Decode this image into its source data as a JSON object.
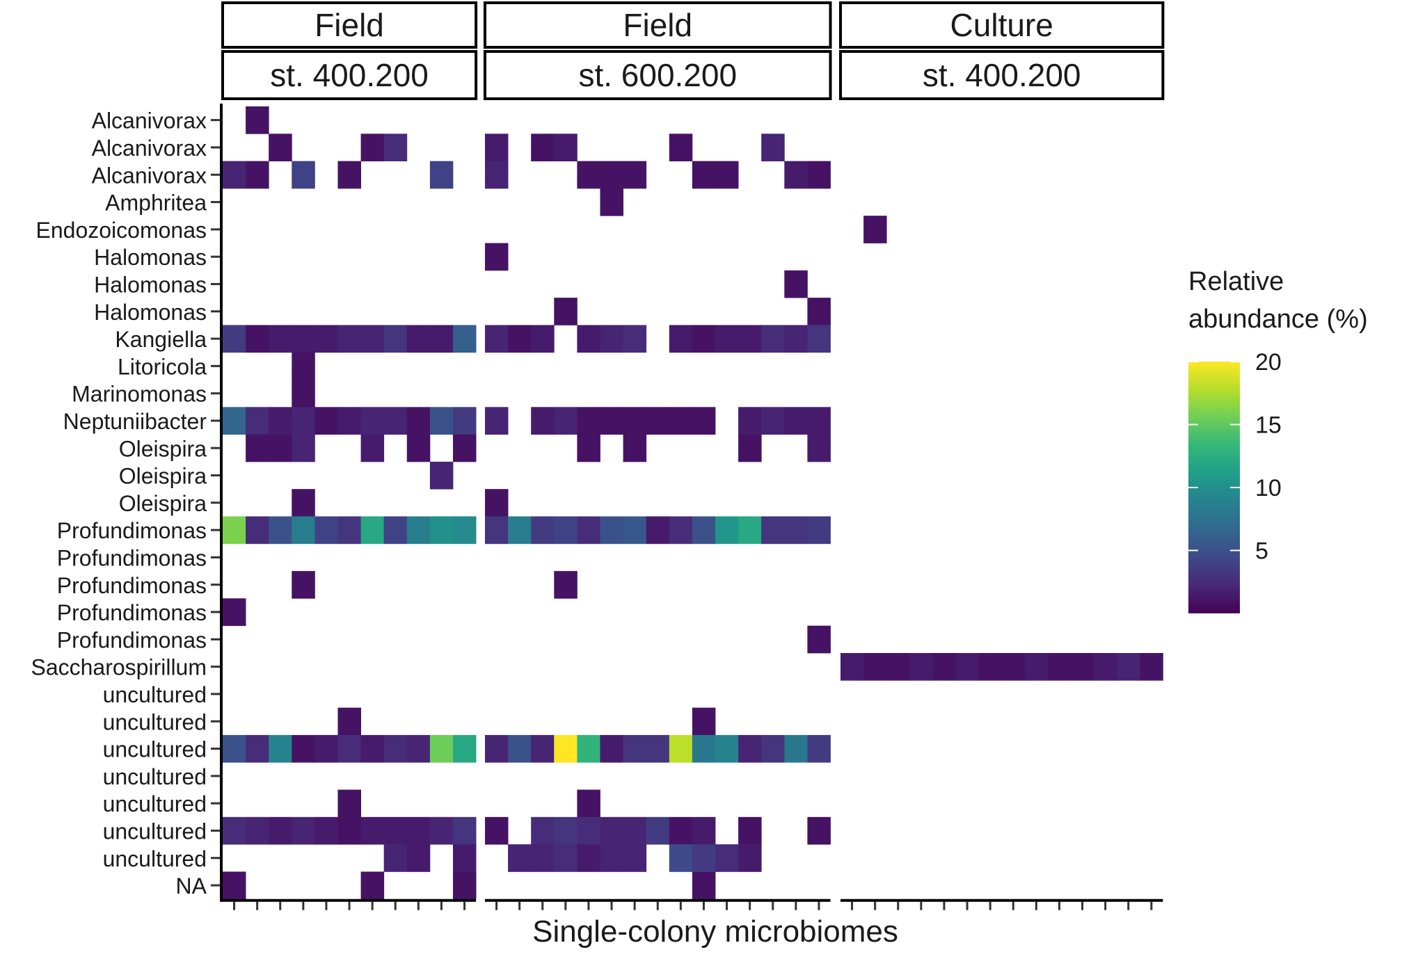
{
  "chart_data": {
    "type": "heatmap",
    "xlabel": "Single-colony microbiomes",
    "ylabel": "",
    "legend": {
      "title_line1": "Relative",
      "title_line2": "abundance (%)",
      "ticks": [
        5,
        10,
        15,
        20
      ],
      "range": [
        0,
        20
      ],
      "placement": "right"
    },
    "colorscale": [
      "#440154",
      "#482878",
      "#3e4989",
      "#31688e",
      "#26828e",
      "#1f9e89",
      "#35b779",
      "#6ece58",
      "#b5de2b",
      "#fde725"
    ],
    "rows": [
      "Alcanivorax",
      "Alcanivorax",
      "Alcanivorax",
      "Amphritea",
      "Endozoicomonas",
      "Halomonas",
      "Halomonas",
      "Halomonas",
      "Kangiella",
      "Litoricola",
      "Marinomonas",
      "Neptuniibacter",
      "Oleispira",
      "Oleispira",
      "Oleispira",
      "Profundimonas",
      "Profundimonas",
      "Profundimonas",
      "Profundimonas",
      "Profundimonas",
      "Saccharospirillum",
      "uncultured",
      "uncultured",
      "uncultured",
      "uncultured",
      "uncultured",
      "uncultured",
      "uncultured",
      "NA"
    ],
    "panels": [
      {
        "strip_top": "Field",
        "strip_bottom": "st. 400.200",
        "ncols": 11,
        "cells": [
          [
            0,
            1,
            1
          ],
          [
            1,
            2,
            1
          ],
          [
            1,
            6,
            1
          ],
          [
            1,
            7,
            2.5
          ],
          [
            2,
            0,
            2
          ],
          [
            2,
            1,
            1
          ],
          [
            2,
            3,
            4
          ],
          [
            2,
            5,
            1
          ],
          [
            2,
            9,
            4
          ],
          [
            9,
            3,
            1
          ],
          [
            10,
            3,
            1
          ],
          [
            14,
            3,
            1
          ],
          [
            17,
            3,
            1
          ],
          [
            18,
            0,
            1
          ],
          [
            22,
            5,
            1
          ],
          [
            25,
            5,
            1
          ],
          [
            8,
            0,
            3.5
          ],
          [
            8,
            1,
            1
          ],
          [
            8,
            2,
            1.5
          ],
          [
            8,
            3,
            1.5
          ],
          [
            8,
            4,
            1.5
          ],
          [
            8,
            5,
            2
          ],
          [
            8,
            6,
            2
          ],
          [
            8,
            7,
            3
          ],
          [
            8,
            8,
            1.5
          ],
          [
            8,
            9,
            1.5
          ],
          [
            8,
            10,
            6
          ],
          [
            11,
            0,
            6.5
          ],
          [
            11,
            1,
            2.5
          ],
          [
            11,
            2,
            1.5
          ],
          [
            11,
            3,
            2
          ],
          [
            11,
            4,
            1
          ],
          [
            11,
            5,
            1.5
          ],
          [
            11,
            6,
            2
          ],
          [
            11,
            7,
            2
          ],
          [
            11,
            8,
            1
          ],
          [
            11,
            9,
            5
          ],
          [
            11,
            10,
            3.5
          ],
          [
            12,
            1,
            1
          ],
          [
            12,
            2,
            1
          ],
          [
            12,
            3,
            2
          ],
          [
            12,
            6,
            1.5
          ],
          [
            12,
            8,
            1
          ],
          [
            12,
            10,
            1
          ],
          [
            13,
            9,
            2
          ],
          [
            15,
            0,
            16
          ],
          [
            15,
            1,
            2.5
          ],
          [
            15,
            2,
            5
          ],
          [
            15,
            3,
            8.5
          ],
          [
            15,
            4,
            4
          ],
          [
            15,
            5,
            3
          ],
          [
            15,
            6,
            12
          ],
          [
            15,
            7,
            4
          ],
          [
            15,
            8,
            8.5
          ],
          [
            15,
            9,
            10
          ],
          [
            15,
            10,
            9.5
          ],
          [
            23,
            0,
            5
          ],
          [
            23,
            1,
            2.5
          ],
          [
            23,
            2,
            9
          ],
          [
            23,
            3,
            1
          ],
          [
            23,
            4,
            1.5
          ],
          [
            23,
            5,
            2.5
          ],
          [
            23,
            6,
            1.5
          ],
          [
            23,
            7,
            2.5
          ],
          [
            23,
            8,
            2
          ],
          [
            23,
            9,
            15.5
          ],
          [
            23,
            10,
            12
          ],
          [
            26,
            0,
            2.5
          ],
          [
            26,
            1,
            2
          ],
          [
            26,
            2,
            1.5
          ],
          [
            26,
            3,
            2
          ],
          [
            26,
            4,
            1.5
          ],
          [
            26,
            5,
            1
          ],
          [
            26,
            6,
            1.5
          ],
          [
            26,
            7,
            1.5
          ],
          [
            26,
            8,
            1.5
          ],
          [
            26,
            9,
            2
          ],
          [
            26,
            10,
            3
          ],
          [
            27,
            7,
            2
          ],
          [
            27,
            8,
            1.5
          ],
          [
            27,
            10,
            1.5
          ],
          [
            28,
            0,
            1
          ],
          [
            28,
            6,
            1
          ],
          [
            28,
            10,
            1
          ]
        ]
      },
      {
        "strip_top": "Field",
        "strip_bottom": "st. 600.200",
        "ncols": 15,
        "cells": [
          [
            1,
            0,
            1.5
          ],
          [
            1,
            2,
            1
          ],
          [
            1,
            3,
            1.5
          ],
          [
            1,
            8,
            1
          ],
          [
            1,
            12,
            2
          ],
          [
            2,
            0,
            2
          ],
          [
            2,
            4,
            1
          ],
          [
            2,
            5,
            1
          ],
          [
            2,
            6,
            1
          ],
          [
            2,
            9,
            1
          ],
          [
            2,
            10,
            1
          ],
          [
            2,
            13,
            1.5
          ],
          [
            2,
            14,
            1
          ],
          [
            3,
            5,
            1
          ],
          [
            5,
            0,
            1
          ],
          [
            6,
            13,
            1
          ],
          [
            7,
            3,
            1
          ],
          [
            7,
            14,
            1
          ],
          [
            14,
            0,
            1
          ],
          [
            19,
            14,
            1
          ],
          [
            17,
            3,
            1
          ],
          [
            22,
            9,
            1
          ],
          [
            25,
            4,
            1
          ],
          [
            28,
            9,
            1
          ],
          [
            8,
            0,
            2
          ],
          [
            8,
            1,
            1
          ],
          [
            8,
            2,
            1.5
          ],
          [
            8,
            4,
            1.5
          ],
          [
            8,
            5,
            2
          ],
          [
            8,
            6,
            2.5
          ],
          [
            8,
            8,
            1.5
          ],
          [
            8,
            9,
            1
          ],
          [
            8,
            10,
            1.5
          ],
          [
            8,
            11,
            1.5
          ],
          [
            8,
            12,
            2.5
          ],
          [
            8,
            13,
            2
          ],
          [
            8,
            14,
            3
          ],
          [
            11,
            0,
            2
          ],
          [
            11,
            2,
            1.5
          ],
          [
            11,
            3,
            2
          ],
          [
            11,
            4,
            1
          ],
          [
            11,
            5,
            1
          ],
          [
            11,
            6,
            1
          ],
          [
            11,
            7,
            1
          ],
          [
            11,
            8,
            1
          ],
          [
            11,
            9,
            1
          ],
          [
            11,
            11,
            1.5
          ],
          [
            11,
            12,
            2
          ],
          [
            11,
            13,
            1.5
          ],
          [
            11,
            14,
            1.5
          ],
          [
            12,
            4,
            1
          ],
          [
            12,
            6,
            1
          ],
          [
            12,
            11,
            1
          ],
          [
            12,
            14,
            1.5
          ],
          [
            15,
            0,
            3
          ],
          [
            15,
            1,
            8.5
          ],
          [
            15,
            2,
            3.5
          ],
          [
            15,
            3,
            4
          ],
          [
            15,
            4,
            2.5
          ],
          [
            15,
            5,
            5
          ],
          [
            15,
            6,
            5.5
          ],
          [
            15,
            7,
            1.5
          ],
          [
            15,
            8,
            2.5
          ],
          [
            15,
            9,
            5
          ],
          [
            15,
            10,
            10.5
          ],
          [
            15,
            11,
            12
          ],
          [
            15,
            12,
            3
          ],
          [
            15,
            13,
            3
          ],
          [
            15,
            14,
            3.5
          ],
          [
            23,
            0,
            2
          ],
          [
            23,
            1,
            5
          ],
          [
            23,
            2,
            2
          ],
          [
            23,
            3,
            20
          ],
          [
            23,
            4,
            13
          ],
          [
            23,
            5,
            1.5
          ],
          [
            23,
            6,
            3
          ],
          [
            23,
            7,
            3
          ],
          [
            23,
            8,
            18
          ],
          [
            23,
            9,
            8
          ],
          [
            23,
            10,
            9
          ],
          [
            23,
            11,
            2
          ],
          [
            23,
            12,
            3
          ],
          [
            23,
            13,
            8
          ],
          [
            23,
            14,
            3.5
          ],
          [
            26,
            0,
            1
          ],
          [
            26,
            2,
            2.5
          ],
          [
            26,
            3,
            3
          ],
          [
            26,
            4,
            2.5
          ],
          [
            26,
            5,
            2
          ],
          [
            26,
            6,
            2
          ],
          [
            26,
            7,
            3.5
          ],
          [
            26,
            8,
            1
          ],
          [
            26,
            9,
            1.5
          ],
          [
            26,
            11,
            1
          ],
          [
            26,
            14,
            1
          ],
          [
            27,
            1,
            2
          ],
          [
            27,
            2,
            2
          ],
          [
            27,
            3,
            2.5
          ],
          [
            27,
            4,
            1.5
          ],
          [
            27,
            5,
            2
          ],
          [
            27,
            6,
            2
          ],
          [
            27,
            8,
            4.5
          ],
          [
            27,
            9,
            3.5
          ],
          [
            27,
            10,
            2.5
          ],
          [
            27,
            11,
            1.5
          ]
        ]
      },
      {
        "strip_top": "Culture",
        "strip_bottom": "st. 400.200",
        "ncols": 14,
        "cells": [
          [
            4,
            1,
            1
          ],
          [
            20,
            0,
            1.5
          ],
          [
            20,
            1,
            1
          ],
          [
            20,
            2,
            1
          ],
          [
            20,
            3,
            1.5
          ],
          [
            20,
            4,
            1
          ],
          [
            20,
            5,
            1.5
          ],
          [
            20,
            6,
            1
          ],
          [
            20,
            7,
            1
          ],
          [
            20,
            8,
            1.5
          ],
          [
            20,
            9,
            1
          ],
          [
            20,
            10,
            1
          ],
          [
            20,
            11,
            1.5
          ],
          [
            20,
            12,
            2
          ],
          [
            20,
            13,
            1
          ]
        ]
      }
    ]
  }
}
